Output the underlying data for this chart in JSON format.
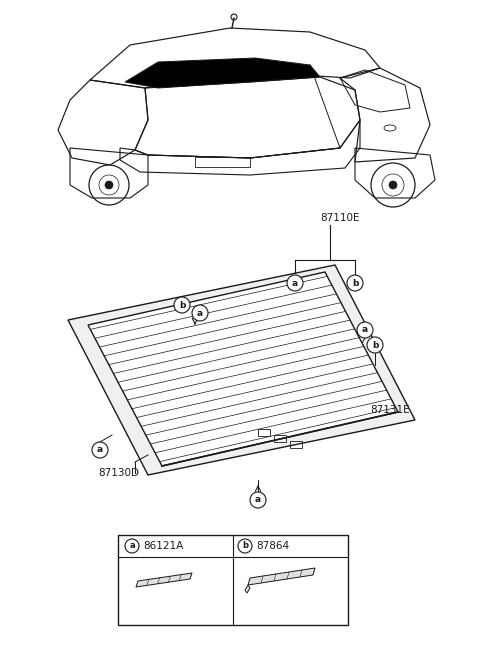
{
  "bg_color": "#ffffff",
  "line_color": "#1a1a1a",
  "legend_a_label": "86121A",
  "legend_b_label": "87864",
  "part_87110E": "87110E",
  "part_87130D": "87130D",
  "part_87131E": "87131E"
}
